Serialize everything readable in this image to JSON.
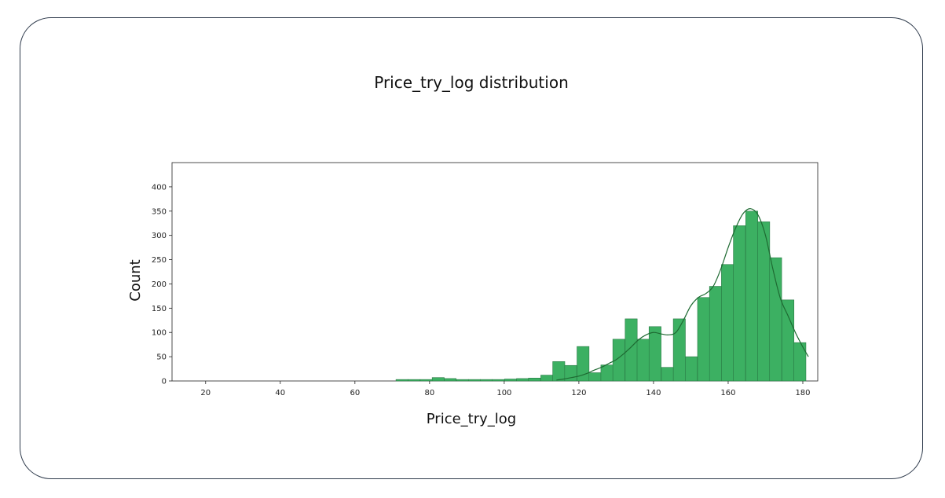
{
  "chart_data": {
    "type": "bar",
    "title": "Price_try_log distribution",
    "xlabel": "Price_try_log",
    "ylabel": "Count",
    "xlim": [
      11,
      184
    ],
    "ylim": [
      0,
      450
    ],
    "xticks": [
      20,
      40,
      60,
      80,
      100,
      120,
      140,
      160,
      180
    ],
    "yticks": [
      0,
      50,
      100,
      150,
      200,
      250,
      300,
      350,
      400
    ],
    "grid": false,
    "bin_width": 3.23,
    "bin_starts": [
      71.0,
      74.2,
      77.5,
      80.7,
      83.9,
      87.2,
      90.4,
      93.6,
      96.8,
      100.1,
      103.3,
      106.5,
      109.8,
      113.0,
      116.2,
      119.5,
      122.7,
      125.9,
      129.1,
      132.4,
      135.6,
      138.8,
      142.1,
      145.3,
      148.5,
      151.8,
      155.0,
      158.2,
      161.4,
      164.7,
      167.9,
      171.1,
      174.4,
      177.6,
      180.8
    ],
    "bin_counts": [
      3,
      3,
      3,
      7,
      5,
      3,
      3,
      3,
      3,
      4,
      5,
      6,
      12,
      40,
      32,
      71,
      17,
      33,
      86,
      128,
      86,
      112,
      28,
      128,
      50,
      172,
      195,
      240,
      320,
      350,
      328,
      254,
      167,
      79,
      0
    ],
    "bar_color": "#3cb062",
    "bar_edge_color": "#2a7a45",
    "kde_color": "#1e6a32",
    "kde": {
      "x": [
        114,
        116,
        118,
        120,
        122,
        124,
        126,
        128,
        130,
        132,
        134,
        136,
        138,
        140,
        142,
        144,
        146,
        148,
        150,
        152,
        154,
        156,
        158,
        160,
        162,
        164,
        166,
        168,
        170,
        172,
        174,
        176,
        178,
        180,
        181.5
      ],
      "y": [
        2,
        4,
        7,
        10,
        15,
        22,
        28,
        36,
        44,
        56,
        70,
        85,
        95,
        100,
        97,
        95,
        100,
        125,
        155,
        172,
        180,
        195,
        230,
        275,
        315,
        345,
        355,
        342,
        300,
        230,
        170,
        135,
        100,
        70,
        50
      ]
    }
  }
}
